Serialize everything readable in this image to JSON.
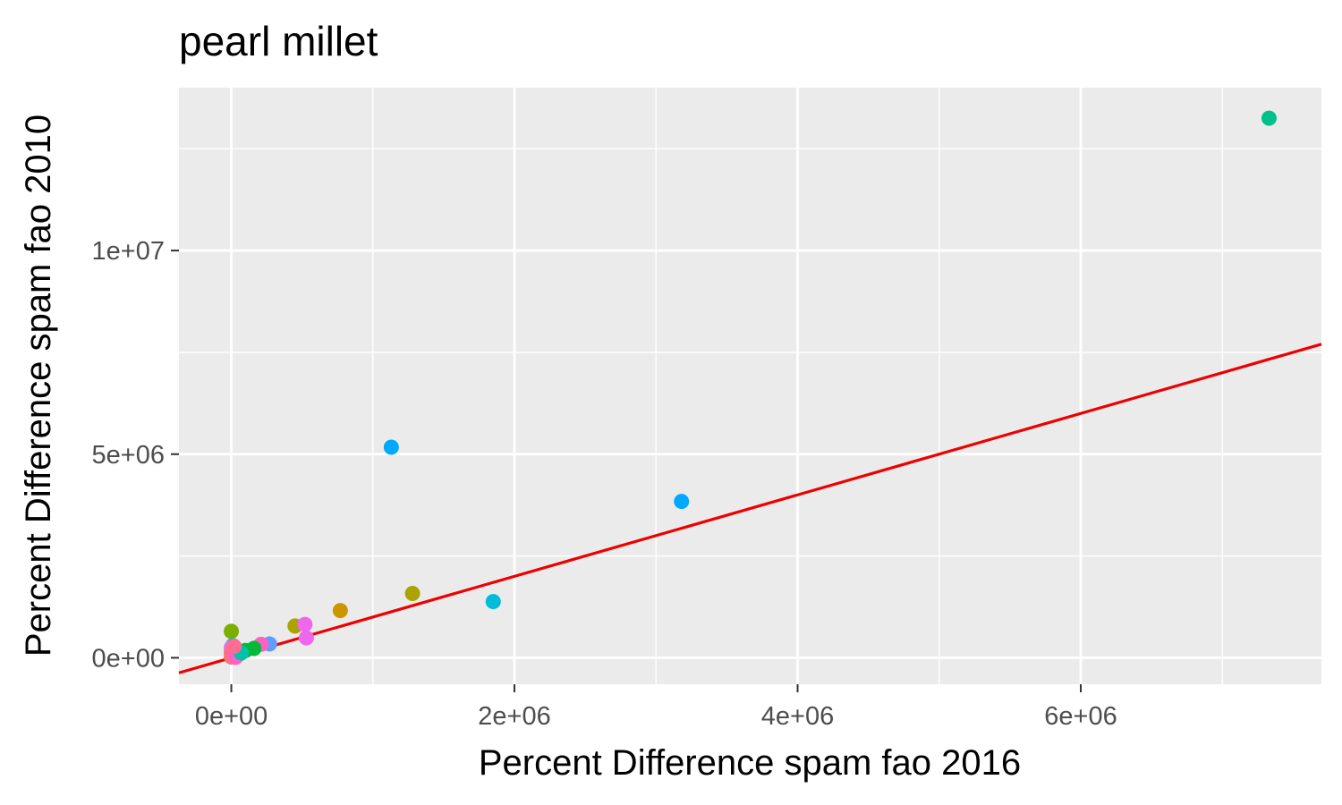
{
  "chart_data": {
    "type": "scatter",
    "title": "pearl millet",
    "xlabel": "Percent Difference spam fao 2016",
    "ylabel": "Percent Difference spam fao 2010",
    "xlim": [
      -370000,
      7700000
    ],
    "ylim": [
      -650000,
      14000000
    ],
    "x_ticks": [
      {
        "value": 0,
        "label": "0e+00"
      },
      {
        "value": 2000000,
        "label": "2e+06"
      },
      {
        "value": 4000000,
        "label": "4e+06"
      },
      {
        "value": 6000000,
        "label": "6e+06"
      }
    ],
    "x_minor_ticks": [
      1000000,
      3000000,
      5000000,
      7000000
    ],
    "y_ticks": [
      {
        "value": 0,
        "label": "0e+00"
      },
      {
        "value": 5000000,
        "label": "5e+06"
      },
      {
        "value": 10000000,
        "label": "1e+07"
      }
    ],
    "y_minor_ticks": [
      2500000,
      7500000,
      12500000
    ],
    "grid": true,
    "background_color": "#ebebeb",
    "grid_color": "#ffffff",
    "reference_line": {
      "slope": 1,
      "intercept": 0,
      "color": "#ee0000"
    },
    "points": [
      {
        "x": 7330000,
        "y": 13250000,
        "color": "#00C08B"
      },
      {
        "x": 1130000,
        "y": 5170000,
        "color": "#00A9FF"
      },
      {
        "x": 3180000,
        "y": 3840000,
        "color": "#00A9FF"
      },
      {
        "x": 1850000,
        "y": 1380000,
        "color": "#00BCD8"
      },
      {
        "x": 1280000,
        "y": 1580000,
        "color": "#ABA300"
      },
      {
        "x": 770000,
        "y": 1160000,
        "color": "#CD9600"
      },
      {
        "x": 450000,
        "y": 780000,
        "color": "#ABA300"
      },
      {
        "x": 520000,
        "y": 820000,
        "color": "#ED68ED"
      },
      {
        "x": 530000,
        "y": 490000,
        "color": "#ED68ED"
      },
      {
        "x": 0,
        "y": 650000,
        "color": "#7CAE00"
      },
      {
        "x": 270000,
        "y": 340000,
        "color": "#619CFF"
      },
      {
        "x": 210000,
        "y": 330000,
        "color": "#FF61C3"
      },
      {
        "x": 160000,
        "y": 230000,
        "color": "#00BA38"
      },
      {
        "x": 100000,
        "y": 180000,
        "color": "#00BA38"
      },
      {
        "x": 60000,
        "y": 100000,
        "color": "#0CB702"
      },
      {
        "x": 40000,
        "y": 60000,
        "color": "#8494FF"
      },
      {
        "x": 20000,
        "y": 40000,
        "color": "#F8766D"
      },
      {
        "x": 10000,
        "y": 300000,
        "color": "#00BFC4"
      },
      {
        "x": 0,
        "y": 250000,
        "color": "#C77CFF"
      },
      {
        "x": 0,
        "y": 150000,
        "color": "#E68613"
      },
      {
        "x": 0,
        "y": 80000,
        "color": "#FF68A1"
      },
      {
        "x": 0,
        "y": 20000,
        "color": "#F8766D"
      },
      {
        "x": 5000,
        "y": 200000,
        "color": "#FF68A1"
      },
      {
        "x": 30000,
        "y": 10000,
        "color": "#FF61C3"
      },
      {
        "x": 70000,
        "y": 120000,
        "color": "#00C1AA"
      },
      {
        "x": 20000,
        "y": 280000,
        "color": "#FF6C91"
      }
    ]
  }
}
